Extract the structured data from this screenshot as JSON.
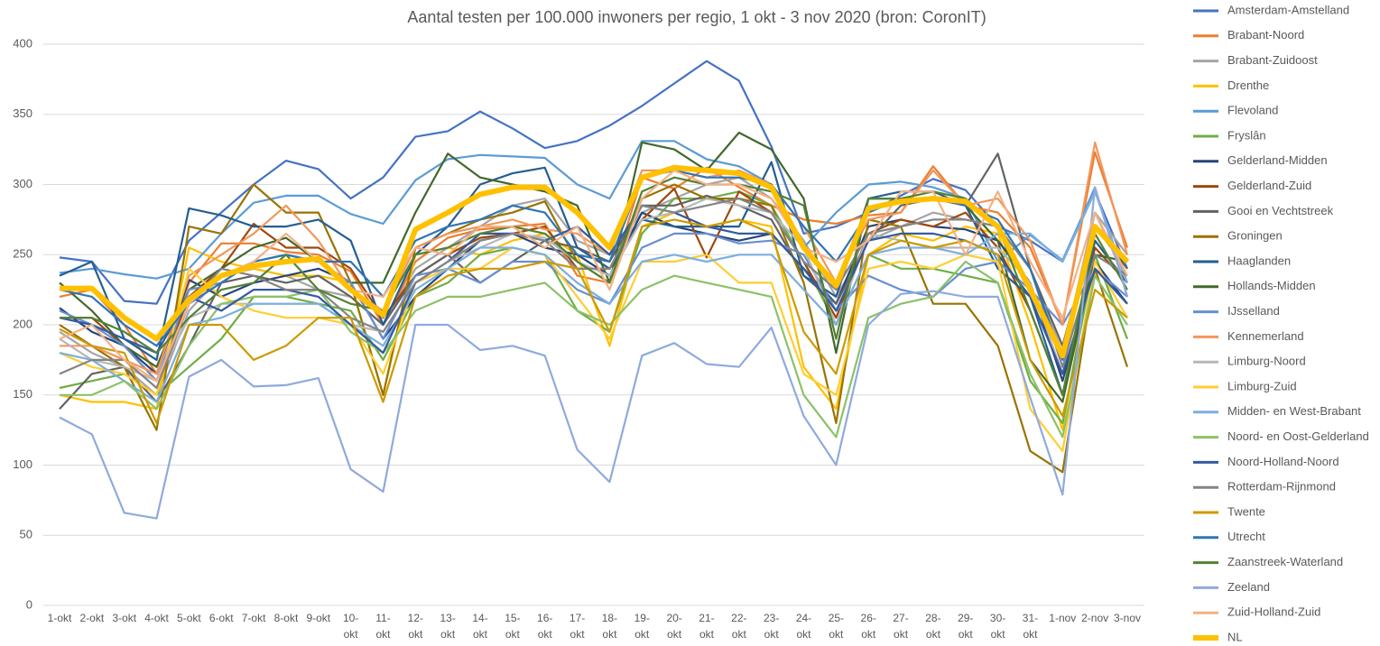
{
  "chart_data": {
    "type": "line",
    "title": "Aantal testen per 100.000 inwoners per regio, 1 okt - 3 nov 2020 (bron: CoronIT)",
    "categories": [
      "1-okt",
      "2-okt",
      "3-okt",
      "4-okt",
      "5-okt",
      "6-okt",
      "7-okt",
      "8-okt",
      "9-okt",
      "10-okt",
      "11-okt",
      "12-okt",
      "13-okt",
      "14-okt",
      "15-okt",
      "16-okt",
      "17-okt",
      "18-okt",
      "19-okt",
      "20-okt",
      "21-okt",
      "22-okt",
      "23-okt",
      "24-okt",
      "25-okt",
      "26-okt",
      "27-okt",
      "28-okt",
      "29-okt",
      "30-okt",
      "31-okt",
      "1-nov",
      "2-nov",
      "3-nov"
    ],
    "ylim": [
      0,
      400
    ],
    "yticks": [
      0,
      50,
      100,
      150,
      200,
      250,
      300,
      350,
      400
    ],
    "grid": true,
    "legend": "right",
    "series": [
      {
        "name": "Amsterdam-Amstelland",
        "color": "#4472C4",
        "values": [
          248,
          245,
          217,
          215,
          260,
          280,
          300,
          317,
          311,
          290,
          305,
          334,
          338,
          352,
          340,
          326,
          331,
          342,
          356,
          372,
          388,
          374,
          327,
          265,
          270,
          280,
          292,
          304,
          296,
          270,
          260,
          245,
          295,
          240
        ]
      },
      {
        "name": "Brabant-Noord",
        "color": "#ED7D31",
        "values": [
          220,
          225,
          200,
          165,
          230,
          258,
          258,
          252,
          250,
          238,
          200,
          245,
          262,
          268,
          270,
          272,
          235,
          230,
          305,
          297,
          312,
          298,
          285,
          275,
          272,
          278,
          280,
          313,
          285,
          280,
          255,
          200,
          323,
          255
        ]
      },
      {
        "name": "Brabant-Zuidoost",
        "color": "#A5A5A5",
        "values": [
          195,
          180,
          170,
          150,
          210,
          235,
          240,
          235,
          225,
          220,
          200,
          240,
          255,
          270,
          285,
          290,
          260,
          250,
          280,
          290,
          300,
          305,
          290,
          260,
          220,
          260,
          270,
          280,
          275,
          270,
          240,
          180,
          280,
          250
        ]
      },
      {
        "name": "Drenthe",
        "color": "#FFC000",
        "values": [
          150,
          145,
          145,
          140,
          255,
          245,
          240,
          235,
          235,
          230,
          150,
          250,
          255,
          250,
          260,
          265,
          250,
          185,
          270,
          280,
          270,
          275,
          270,
          170,
          140,
          250,
          265,
          260,
          270,
          265,
          200,
          125,
          260,
          230
        ]
      },
      {
        "name": "Flevoland",
        "color": "#5B9BD5",
        "values": [
          237,
          240,
          236,
          233,
          240,
          265,
          287,
          292,
          292,
          279,
          272,
          303,
          318,
          321,
          320,
          319,
          300,
          290,
          331,
          331,
          318,
          313,
          300,
          255,
          280,
          300,
          302,
          298,
          290,
          245,
          264,
          246,
          298,
          220
        ]
      },
      {
        "name": "Fryslân",
        "color": "#70AD47",
        "values": [
          155,
          160,
          165,
          150,
          170,
          190,
          220,
          220,
          215,
          210,
          175,
          220,
          230,
          250,
          255,
          250,
          210,
          195,
          265,
          290,
          290,
          295,
          285,
          245,
          200,
          250,
          240,
          240,
          235,
          230,
          160,
          130,
          250,
          190
        ]
      },
      {
        "name": "Gelderland-Midden",
        "color": "#264478",
        "values": [
          212,
          195,
          185,
          165,
          232,
          220,
          230,
          235,
          240,
          230,
          190,
          220,
          240,
          260,
          265,
          255,
          250,
          235,
          280,
          270,
          265,
          260,
          265,
          240,
          215,
          270,
          275,
          270,
          268,
          260,
          230,
          160,
          245,
          215
        ]
      },
      {
        "name": "Gelderland-Zuid",
        "color": "#9E480E",
        "values": [
          205,
          205,
          185,
          160,
          220,
          240,
          272,
          255,
          255,
          240,
          205,
          235,
          250,
          262,
          265,
          270,
          240,
          240,
          275,
          297,
          248,
          295,
          280,
          245,
          205,
          265,
          275,
          270,
          280,
          255,
          210,
          150,
          255,
          230
        ]
      },
      {
        "name": "Gooi en Vechtstreek",
        "color": "#636363",
        "values": [
          140,
          165,
          170,
          145,
          185,
          230,
          235,
          230,
          235,
          220,
          200,
          235,
          250,
          230,
          245,
          260,
          255,
          245,
          285,
          285,
          292,
          285,
          275,
          235,
          215,
          260,
          285,
          290,
          285,
          322,
          240,
          185,
          270,
          240
        ]
      },
      {
        "name": "Groningen",
        "color": "#997300",
        "values": [
          200,
          185,
          170,
          125,
          270,
          265,
          300,
          280,
          280,
          230,
          150,
          255,
          265,
          275,
          280,
          288,
          245,
          230,
          290,
          300,
          290,
          290,
          285,
          230,
          130,
          275,
          270,
          215,
          215,
          185,
          110,
          95,
          240,
          170
        ]
      },
      {
        "name": "Haaglanden",
        "color": "#255E91",
        "values": [
          235,
          245,
          190,
          175,
          283,
          278,
          270,
          270,
          275,
          260,
          200,
          250,
          270,
          300,
          308,
          312,
          255,
          240,
          275,
          270,
          270,
          270,
          316,
          235,
          220,
          290,
          295,
          295,
          285,
          240,
          220,
          150,
          260,
          230
        ]
      },
      {
        "name": "Hollands-Midden",
        "color": "#43682B",
        "values": [
          230,
          210,
          185,
          170,
          225,
          240,
          255,
          262,
          245,
          230,
          230,
          280,
          322,
          305,
          300,
          295,
          285,
          230,
          330,
          325,
          310,
          337,
          325,
          290,
          180,
          290,
          290,
          290,
          285,
          260,
          175,
          145,
          250,
          245
        ]
      },
      {
        "name": "IJsselland",
        "color": "#698ED0",
        "values": [
          210,
          200,
          185,
          160,
          225,
          230,
          245,
          250,
          245,
          230,
          190,
          235,
          240,
          230,
          245,
          245,
          225,
          215,
          255,
          265,
          265,
          258,
          260,
          250,
          210,
          235,
          225,
          220,
          240,
          245,
          225,
          200,
          240,
          220
        ]
      },
      {
        "name": "Kennemerland",
        "color": "#F1975A",
        "values": [
          185,
          185,
          175,
          165,
          235,
          250,
          265,
          285,
          260,
          225,
          210,
          255,
          265,
          270,
          275,
          268,
          265,
          250,
          310,
          310,
          305,
          310,
          300,
          270,
          230,
          275,
          280,
          310,
          285,
          290,
          260,
          200,
          330,
          250
        ]
      },
      {
        "name": "Limburg-Noord",
        "color": "#B7B7B7",
        "values": [
          190,
          175,
          170,
          160,
          205,
          215,
          215,
          215,
          215,
          200,
          195,
          230,
          245,
          255,
          265,
          262,
          245,
          235,
          275,
          280,
          290,
          285,
          280,
          255,
          200,
          265,
          260,
          255,
          255,
          255,
          230,
          165,
          280,
          230
        ]
      },
      {
        "name": "Limburg-Zuid",
        "color": "#FFCD33",
        "values": [
          180,
          170,
          165,
          150,
          240,
          220,
          210,
          205,
          205,
          200,
          165,
          230,
          240,
          240,
          255,
          250,
          220,
          190,
          245,
          245,
          250,
          230,
          230,
          165,
          150,
          240,
          245,
          240,
          250,
          245,
          140,
          110,
          245,
          205
        ]
      },
      {
        "name": "Midden- en West-Brabant",
        "color": "#7CAFDD",
        "values": [
          180,
          175,
          160,
          145,
          200,
          205,
          215,
          215,
          215,
          200,
          185,
          225,
          240,
          255,
          255,
          250,
          230,
          215,
          245,
          250,
          245,
          250,
          250,
          225,
          200,
          250,
          255,
          255,
          250,
          265,
          265,
          245,
          295,
          230
        ]
      },
      {
        "name": "Noord- en Oost-Gelderland",
        "color": "#8CC168",
        "values": [
          150,
          150,
          160,
          140,
          185,
          215,
          220,
          220,
          225,
          195,
          180,
          210,
          220,
          220,
          225,
          230,
          210,
          200,
          225,
          235,
          230,
          225,
          220,
          150,
          120,
          205,
          215,
          220,
          245,
          230,
          165,
          120,
          235,
          200
        ]
      },
      {
        "name": "Noord-Holland-Noord",
        "color": "#335AA1",
        "values": [
          205,
          200,
          190,
          180,
          220,
          210,
          225,
          225,
          220,
          200,
          180,
          230,
          245,
          265,
          265,
          260,
          270,
          250,
          285,
          280,
          270,
          265,
          265,
          240,
          210,
          260,
          265,
          265,
          260,
          250,
          220,
          165,
          240,
          215
        ]
      },
      {
        "name": "Rotterdam-Rijnmond",
        "color": "#848484",
        "values": [
          165,
          175,
          175,
          155,
          215,
          240,
          235,
          225,
          225,
          205,
          195,
          230,
          245,
          260,
          265,
          260,
          240,
          240,
          285,
          280,
          285,
          290,
          280,
          245,
          225,
          265,
          270,
          275,
          275,
          270,
          240,
          170,
          250,
          235
        ]
      },
      {
        "name": "Twente",
        "color": "#CC9A00",
        "values": [
          197,
          185,
          180,
          130,
          200,
          200,
          175,
          185,
          205,
          205,
          145,
          220,
          235,
          240,
          240,
          245,
          240,
          195,
          270,
          275,
          270,
          275,
          265,
          195,
          165,
          250,
          260,
          255,
          260,
          250,
          175,
          135,
          225,
          205
        ]
      },
      {
        "name": "Utrecht",
        "color": "#2E75B6",
        "values": [
          225,
          220,
          200,
          185,
          215,
          230,
          245,
          250,
          245,
          245,
          220,
          260,
          270,
          275,
          285,
          280,
          250,
          245,
          305,
          310,
          305,
          305,
          300,
          270,
          245,
          280,
          290,
          290,
          285,
          275,
          240,
          175,
          270,
          245
        ]
      },
      {
        "name": "Zaanstreek-Waterland",
        "color": "#548235",
        "values": [
          205,
          205,
          195,
          180,
          205,
          225,
          230,
          250,
          225,
          215,
          210,
          250,
          255,
          265,
          270,
          265,
          245,
          230,
          295,
          305,
          300,
          300,
          295,
          285,
          190,
          290,
          290,
          295,
          290,
          270,
          210,
          150,
          265,
          225
        ]
      },
      {
        "name": "Zeeland",
        "color": "#8FAADC",
        "values": [
          134,
          122,
          66,
          62,
          163,
          175,
          156,
          157,
          162,
          97,
          81,
          200,
          200,
          182,
          185,
          178,
          111,
          88,
          178,
          187,
          172,
          170,
          198,
          135,
          100,
          200,
          222,
          224,
          220,
          220,
          148,
          79,
          298,
          220
        ]
      },
      {
        "name": "Zuid-Holland-Zuid",
        "color": "#F4B183",
        "values": [
          190,
          200,
          175,
          160,
          215,
          235,
          245,
          265,
          245,
          225,
          220,
          255,
          250,
          270,
          270,
          255,
          270,
          225,
          290,
          310,
          300,
          300,
          290,
          255,
          245,
          260,
          295,
          295,
          250,
          295,
          245,
          205,
          280,
          235
        ]
      },
      {
        "name": "NL",
        "color": "#FFC000",
        "width": 6,
        "values": [
          226,
          226,
          205,
          190,
          218,
          235,
          242,
          245,
          247,
          225,
          207,
          268,
          280,
          293,
          298,
          298,
          280,
          255,
          305,
          312,
          310,
          308,
          298,
          255,
          228,
          283,
          288,
          290,
          288,
          270,
          225,
          178,
          270,
          245
        ]
      }
    ]
  }
}
